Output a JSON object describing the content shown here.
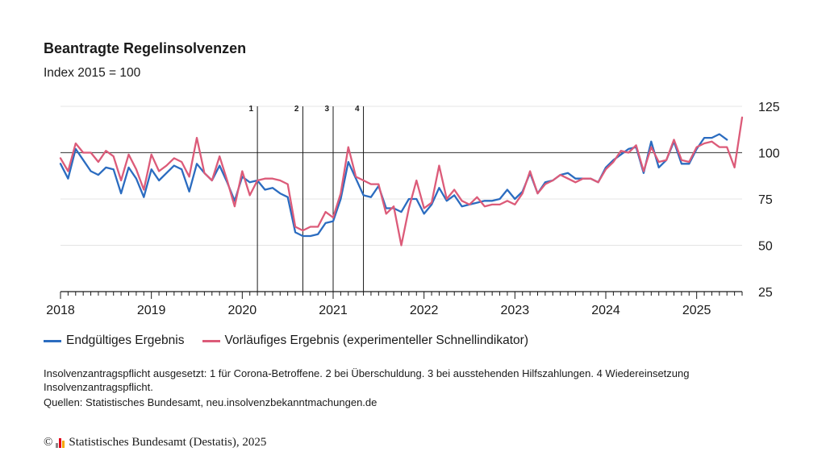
{
  "header": {
    "title": "Beantragte Regelinsolvenzen",
    "subtitle": "Index 2015 = 100"
  },
  "legend": {
    "final_label": "Endgültiges Ergebnis",
    "prelim_label": "Vorläufiges Ergebnis (experimenteller Schnellindikator)"
  },
  "footer": {
    "note": "Insolvenzantragspflicht ausgesetzt: 1 für Corona-Betroffene. 2 bei Überschuldung. 3 bei ausstehenden Hilfszahlungen. 4 Wiedereinsetzung Insolvenzantragspflicht.",
    "source": "Quellen: Statistisches Bundesamt, neu.insolvenzbekanntmachungen.de",
    "copyright_symbol": "©",
    "copyright_text": "Statistisches Bundesamt (Destatis), 2025"
  },
  "colors": {
    "final": "#2b6cc0",
    "prelim": "#dc5b79",
    "reference": "#555555",
    "grid": "#e4e4e4",
    "logo": [
      "#8a8a8a",
      "#e2001a",
      "#f5a800"
    ]
  },
  "chart_data": {
    "type": "line",
    "title": "Beantragte Regelinsolvenzen",
    "subtitle": "Index 2015 = 100",
    "xlabel": "",
    "ylabel": "",
    "x_start": "2018-01",
    "x_ticks": [
      "2018",
      "2019",
      "2020",
      "2021",
      "2022",
      "2023",
      "2024",
      "2025"
    ],
    "xlim": [
      "2018-01",
      "2025-07"
    ],
    "ylim": [
      25,
      125
    ],
    "y_ticks": [
      25,
      50,
      75,
      100,
      125
    ],
    "reference_line": 100,
    "grid": true,
    "legend_position": "bottom-left",
    "event_markers": [
      {
        "label": "1",
        "date": "2020-03"
      },
      {
        "label": "2",
        "date": "2020-09"
      },
      {
        "label": "3",
        "date": "2021-01"
      },
      {
        "label": "4",
        "date": "2021-05"
      }
    ],
    "series": [
      {
        "name": "Endgültiges Ergebnis",
        "color": "#2b6cc0",
        "values": [
          94,
          86,
          102,
          96,
          90,
          88,
          92,
          91,
          78,
          92,
          86,
          76,
          91,
          85,
          89,
          93,
          91,
          79,
          94,
          89,
          85,
          93,
          84,
          74,
          87,
          84,
          85,
          80,
          81,
          78,
          76,
          57,
          55,
          55,
          56,
          62,
          63,
          75,
          95,
          86,
          77,
          76,
          82,
          70,
          70,
          68,
          75,
          75,
          67,
          72,
          81,
          74,
          77,
          71,
          72,
          73,
          74,
          74,
          75,
          80,
          75,
          79,
          89,
          78,
          84,
          85,
          88,
          89,
          86,
          86,
          86,
          84,
          92,
          96,
          99,
          102,
          103,
          89,
          106,
          92,
          96,
          106,
          94,
          94,
          102,
          108,
          108,
          110,
          107
        ]
      },
      {
        "name": "Vorläufiges Ergebnis (experimenteller Schnellindikator)",
        "color": "#dc5b79",
        "values": [
          97,
          90,
          105,
          100,
          100,
          95,
          101,
          98,
          85,
          99,
          91,
          80,
          99,
          90,
          93,
          97,
          95,
          87,
          108,
          89,
          85,
          98,
          85,
          71,
          90,
          77,
          85,
          86,
          86,
          85,
          83,
          60,
          58,
          60,
          60,
          68,
          65,
          78,
          103,
          87,
          85,
          83,
          83,
          67,
          71,
          50,
          70,
          85,
          70,
          73,
          93,
          75,
          80,
          74,
          72,
          76,
          71,
          72,
          72,
          74,
          72,
          78,
          90,
          78,
          83,
          85,
          88,
          86,
          84,
          86,
          86,
          84,
          91,
          95,
          101,
          100,
          104,
          90,
          103,
          95,
          96,
          107,
          96,
          95,
          103,
          105,
          106,
          103,
          103,
          92,
          119
        ]
      }
    ]
  }
}
